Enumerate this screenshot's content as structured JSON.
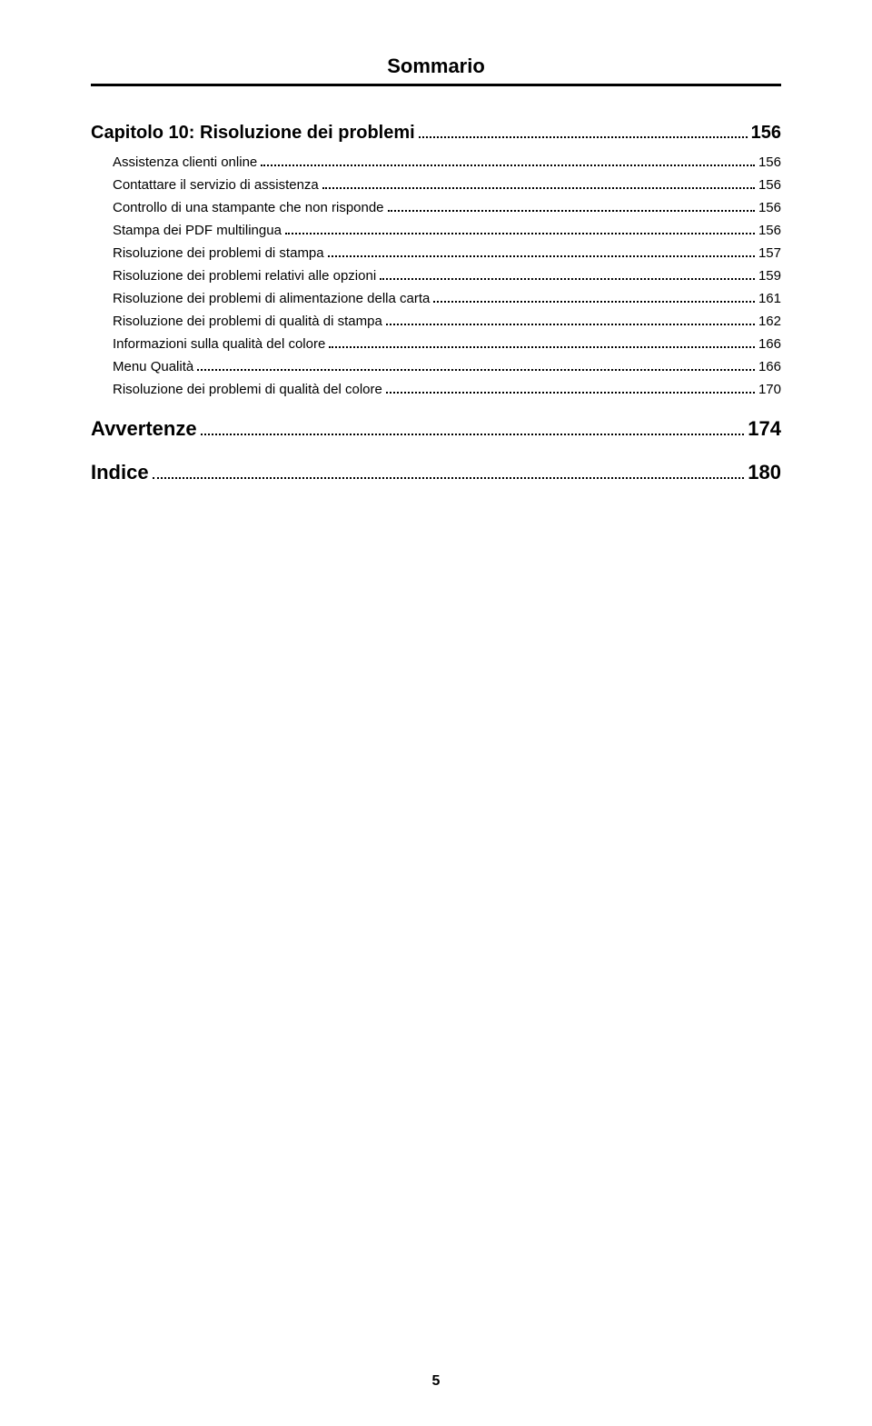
{
  "header": "Sommario",
  "page_number": "5",
  "entries": [
    {
      "type": "chapter",
      "label": "Capitolo 10:  Risoluzione dei problemi",
      "page": "156"
    },
    {
      "type": "sub",
      "label": "Assistenza clienti online",
      "page": "156"
    },
    {
      "type": "sub",
      "label": "Contattare il servizio di assistenza",
      "page": "156"
    },
    {
      "type": "sub",
      "label": "Controllo di una stampante che non risponde",
      "page": "156"
    },
    {
      "type": "sub",
      "label": "Stampa dei PDF multilingua",
      "page": "156"
    },
    {
      "type": "sub",
      "label": "Risoluzione dei problemi di stampa",
      "page": "157"
    },
    {
      "type": "sub",
      "label": "Risoluzione dei problemi relativi alle opzioni",
      "page": "159"
    },
    {
      "type": "sub",
      "label": "Risoluzione dei problemi di alimentazione della carta",
      "page": "161"
    },
    {
      "type": "sub",
      "label": "Risoluzione dei problemi di qualità di stampa",
      "page": "162"
    },
    {
      "type": "sub",
      "label": "Informazioni sulla qualità del colore",
      "page": "166"
    },
    {
      "type": "sub",
      "label": "Menu Qualità",
      "page": "166"
    },
    {
      "type": "sub",
      "label": "Risoluzione dei problemi di qualità del colore",
      "page": "170"
    },
    {
      "type": "section",
      "label": "Avvertenze",
      "page": "174"
    },
    {
      "type": "section",
      "label": "Indice",
      "page": "180"
    }
  ]
}
